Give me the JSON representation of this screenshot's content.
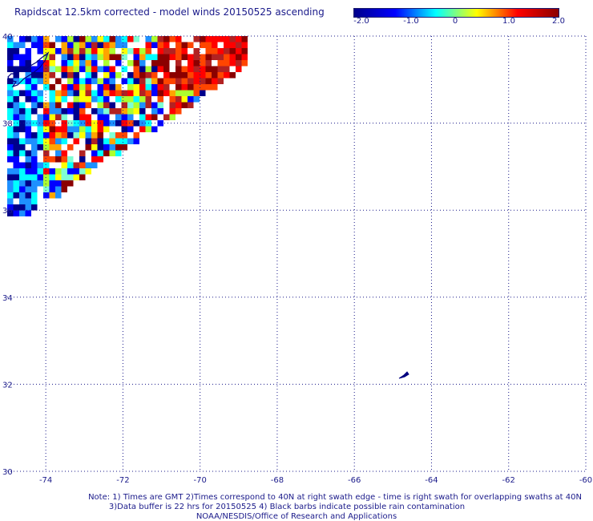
{
  "title": "Rapidscat 12.5km corrected - model winds 20150525 ascending",
  "colorbar": {
    "ticks": [
      "-2.0",
      "-1.0",
      "0",
      "1.0",
      "2.0"
    ],
    "range": [
      -2.0,
      2.0
    ],
    "colors": [
      "#00008b",
      "#0000ff",
      "#00ffff",
      "#ffff00",
      "#ff0000",
      "#8b0000"
    ]
  },
  "map": {
    "lon_range": [
      -75,
      -60
    ],
    "lat_range": [
      30,
      40
    ],
    "lon_labels": [
      "-74",
      "-72",
      "-70",
      "-68",
      "-66",
      "-64",
      "-62",
      "-60"
    ],
    "lat_labels": [
      "40",
      "38",
      "36",
      "34",
      "32",
      "30"
    ],
    "gridline_color": "#1a1a8a"
  },
  "footer": {
    "line1": "Note: 1) Times are GMT 2)Times correspond to 40N at right swath edge - time is right swath for overlapping swaths at 40N",
    "line2": "3)Data buffer is 22 hrs for 20150525 4) Black barbs indicate possible rain contamination",
    "line3": "NOAA/NESDIS/Office of Research and Applications"
  }
}
